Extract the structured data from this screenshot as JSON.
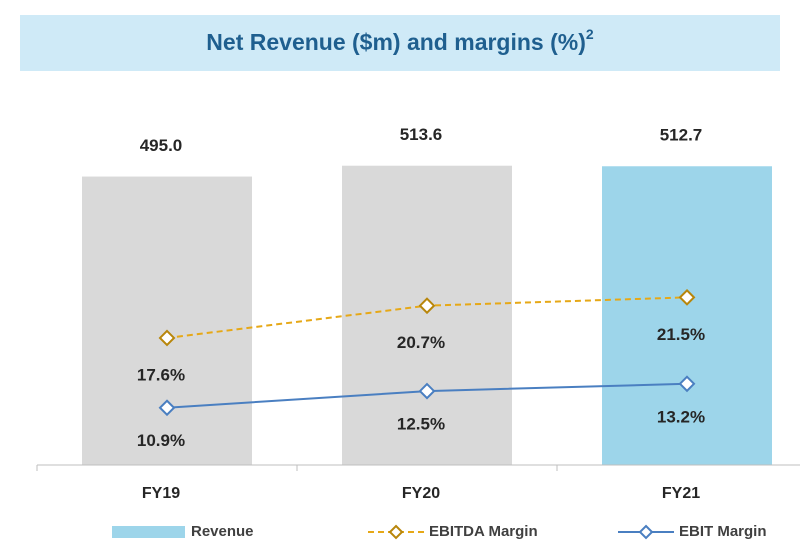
{
  "chart_data": {
    "type": "bar_line",
    "title": "Net Revenue ($m) and margins (%)",
    "title_superscript": "2",
    "categories": [
      "FY19",
      "FY20",
      "FY21"
    ],
    "ylim": [
      0,
      520
    ],
    "y2lim": [
      5.4,
      34.5
    ],
    "series": [
      {
        "name": "Revenue",
        "type": "bar",
        "color": "#9dd5ea",
        "bar_colors": [
          "#d9d9d9",
          "#d9d9d9",
          "#9dd5ea"
        ],
        "values": [
          495.0,
          513.6,
          512.7
        ],
        "value_labels": [
          "495.0",
          "513.6",
          "512.7"
        ]
      },
      {
        "name": "EBITDA Margin",
        "type": "line",
        "axis": "y2",
        "color": "#e6a817",
        "marker_color": "#b8860b",
        "line_style": "dashed",
        "marker": "diamond",
        "values": [
          17.6,
          20.7,
          21.5
        ],
        "value_labels": [
          "17.6%",
          "20.7%",
          "21.5%"
        ]
      },
      {
        "name": "EBIT Margin",
        "type": "line",
        "axis": "y2",
        "color": "#4a7fc1",
        "marker_color": "#4a7fc1",
        "line_style": "solid",
        "marker": "diamond",
        "values": [
          10.9,
          12.5,
          13.2
        ],
        "value_labels": [
          "10.9%",
          "12.5%",
          "13.2%"
        ]
      }
    ]
  }
}
